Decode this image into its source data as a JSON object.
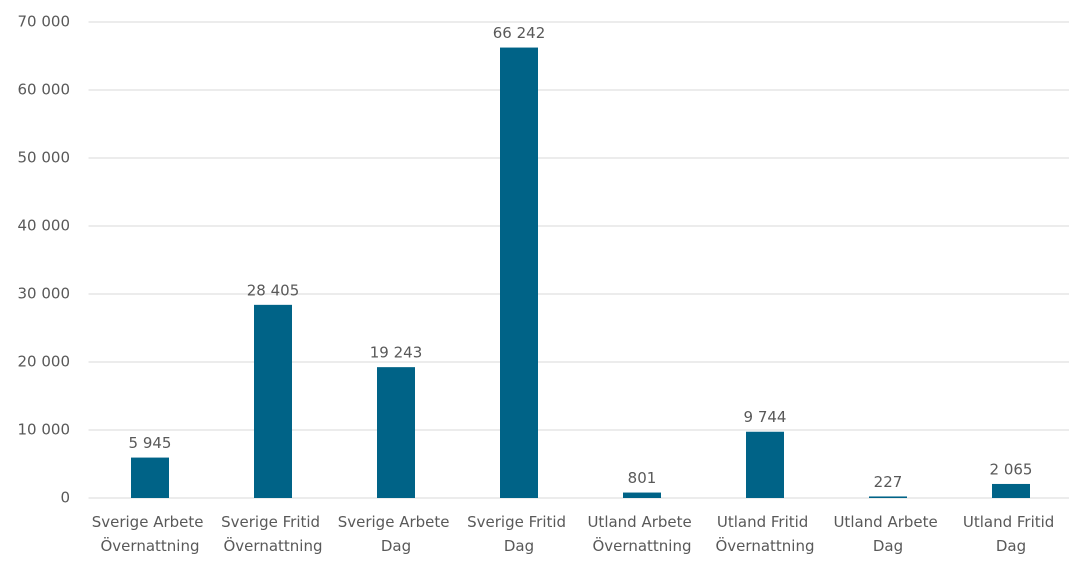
{
  "chart_data": {
    "type": "bar",
    "categories": [
      "Sverige Arbete Övernattning",
      "Sverige Fritid Övernattning",
      "Sverige Arbete Dag",
      "Sverige Fritid Dag",
      "Utland Arbete Övernattning",
      "Utland Fritid Övernattning",
      "Utland Arbete Dag",
      "Utland Fritid Dag"
    ],
    "values": [
      5945,
      28405,
      19243,
      66242,
      801,
      9744,
      227,
      2065
    ],
    "value_labels": [
      "5 945",
      "28 405",
      "19 243",
      "66 242",
      "801",
      "9 744",
      "227",
      "2 065"
    ],
    "color": "#006387",
    "ylim": [
      0,
      70000
    ],
    "yticks": [
      0,
      {
        "value": 10000,
        "label": "10 000"
      },
      {
        "value": 20000,
        "label": "20 000"
      },
      {
        "value": 30000,
        "label": "30 000"
      },
      {
        "value": 40000,
        "label": "40 000"
      },
      {
        "value": 50000,
        "label": "50 000"
      },
      {
        "value": 60000,
        "label": "60 000"
      },
      {
        "value": 70000,
        "label": "70 000"
      }
    ],
    "grid": true
  }
}
